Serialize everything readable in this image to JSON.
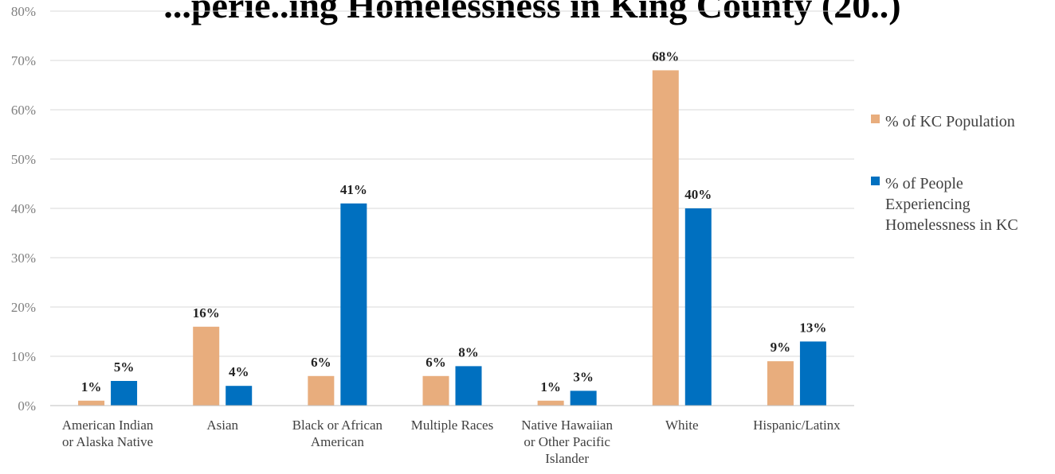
{
  "chart_data": {
    "type": "bar",
    "title": "...perie..ing Homelessness in King County (20..)",
    "categories": [
      [
        "American Indian",
        "or Alaska Native"
      ],
      [
        "Asian"
      ],
      [
        "Black or African",
        "American"
      ],
      [
        "Multiple Races"
      ],
      [
        "Native Hawaiian",
        "or Other Pacific",
        "Islander"
      ],
      [
        "White"
      ],
      [
        "Hispanic/Latinx"
      ]
    ],
    "series": [
      {
        "name": "% of KC Population",
        "color": "#E8AD7D",
        "values": [
          1,
          16,
          6,
          6,
          1,
          68,
          9
        ],
        "labels": [
          "1%",
          "16%",
          "6%",
          "6%",
          "1%",
          "68%",
          "9%"
        ]
      },
      {
        "name": "% of People Experiencing Homelessness in KC",
        "name_lines": [
          "% of People",
          "Experiencing",
          "Homelessness in KC"
        ],
        "color": "#0070C0",
        "values": [
          5,
          4,
          41,
          8,
          3,
          40,
          13
        ],
        "labels": [
          "5%",
          "4%",
          "41%",
          "8%",
          "3%",
          "40%",
          "13%"
        ]
      }
    ],
    "ylim": [
      0,
      80
    ],
    "yticks": [
      "0%",
      "10%",
      "20%",
      "30%",
      "40%",
      "50%",
      "60%",
      "70%",
      "80%"
    ],
    "grid": true,
    "legend_position": "right"
  }
}
